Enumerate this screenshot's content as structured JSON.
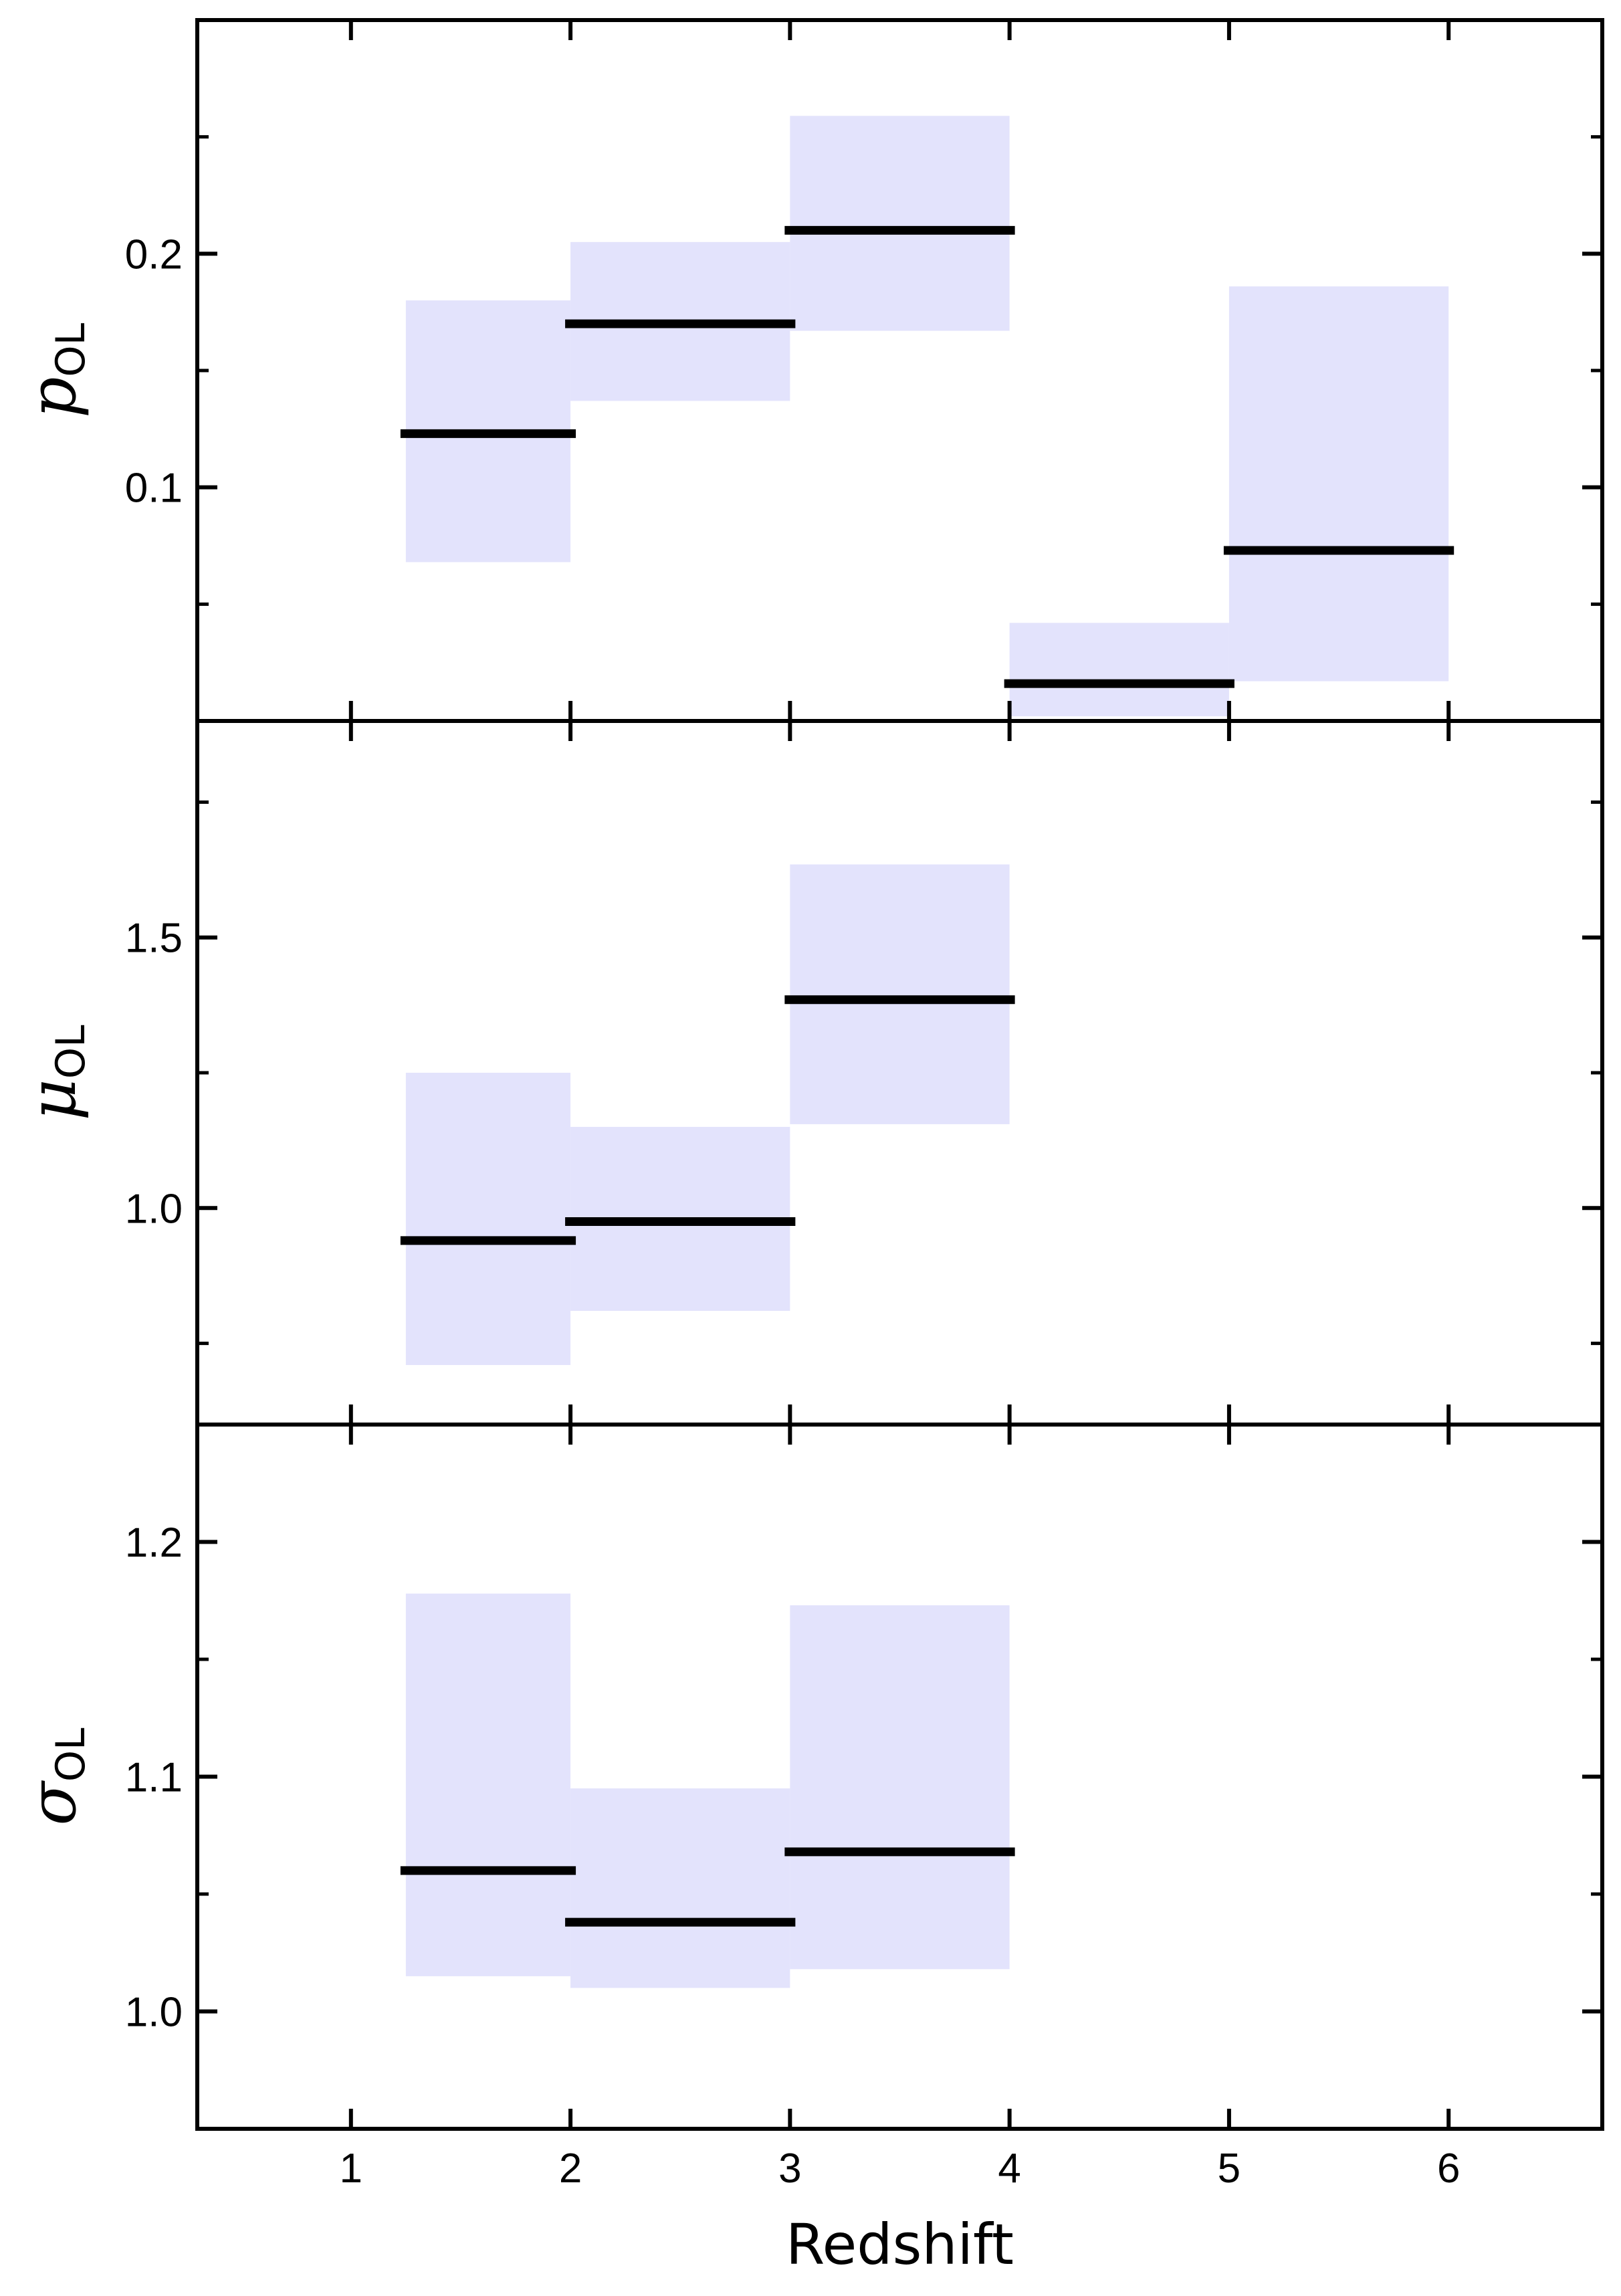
{
  "chart_data": {
    "type": "step-band",
    "xlabel": "Redshift",
    "xlim": [
      0.3,
      6.7
    ],
    "x_ticks": [
      1,
      2,
      3,
      4,
      5,
      6
    ],
    "x_tick_labels": [
      "1",
      "2",
      "3",
      "4",
      "5",
      "6"
    ],
    "band_color": "#e3e3fc",
    "line_color": "#000000",
    "panels": [
      {
        "ylabel_main": "p",
        "ylabel_sub": "OL",
        "ylim": [
          0.0,
          0.3
        ],
        "y_major_ticks": [
          0.1,
          0.2
        ],
        "y_tick_labels": [
          "0.1",
          "0.2"
        ],
        "y_minor_ticks": [
          0.05,
          0.15,
          0.25
        ],
        "bins": [
          {
            "x0": 1.25,
            "x1": 2.0,
            "value": 0.123,
            "lo": 0.068,
            "hi": 0.18
          },
          {
            "x0": 2.0,
            "x1": 3.0,
            "value": 0.17,
            "lo": 0.137,
            "hi": 0.205
          },
          {
            "x0": 3.0,
            "x1": 4.0,
            "value": 0.21,
            "lo": 0.167,
            "hi": 0.259
          },
          {
            "x0": 4.0,
            "x1": 5.0,
            "value": 0.016,
            "lo": 0.002,
            "hi": 0.042
          },
          {
            "x0": 5.0,
            "x1": 6.0,
            "value": 0.073,
            "lo": 0.017,
            "hi": 0.186
          }
        ]
      },
      {
        "ylabel_main": "μ",
        "ylabel_sub": "OL",
        "ylim": [
          0.6,
          1.9
        ],
        "y_major_ticks": [
          1.0,
          1.5
        ],
        "y_tick_labels": [
          "1.0",
          "1.5"
        ],
        "y_minor_ticks": [
          0.75,
          1.25,
          1.75
        ],
        "bins": [
          {
            "x0": 1.25,
            "x1": 2.0,
            "value": 0.94,
            "lo": 0.71,
            "hi": 1.25
          },
          {
            "x0": 2.0,
            "x1": 3.0,
            "value": 0.975,
            "lo": 0.81,
            "hi": 1.15
          },
          {
            "x0": 3.0,
            "x1": 4.0,
            "value": 1.385,
            "lo": 1.155,
            "hi": 1.635
          }
        ]
      },
      {
        "ylabel_main": "σ",
        "ylabel_sub": "OL",
        "ylim": [
          0.95,
          1.25
        ],
        "y_major_ticks": [
          1.0,
          1.1,
          1.2
        ],
        "y_tick_labels": [
          "1.0",
          "1.1",
          "1.2"
        ],
        "y_minor_ticks": [
          1.05,
          1.15
        ],
        "bins": [
          {
            "x0": 1.25,
            "x1": 2.0,
            "value": 1.06,
            "lo": 1.015,
            "hi": 1.178
          },
          {
            "x0": 2.0,
            "x1": 3.0,
            "value": 1.038,
            "lo": 1.01,
            "hi": 1.095
          },
          {
            "x0": 3.0,
            "x1": 4.0,
            "value": 1.068,
            "lo": 1.018,
            "hi": 1.173
          }
        ]
      }
    ]
  }
}
